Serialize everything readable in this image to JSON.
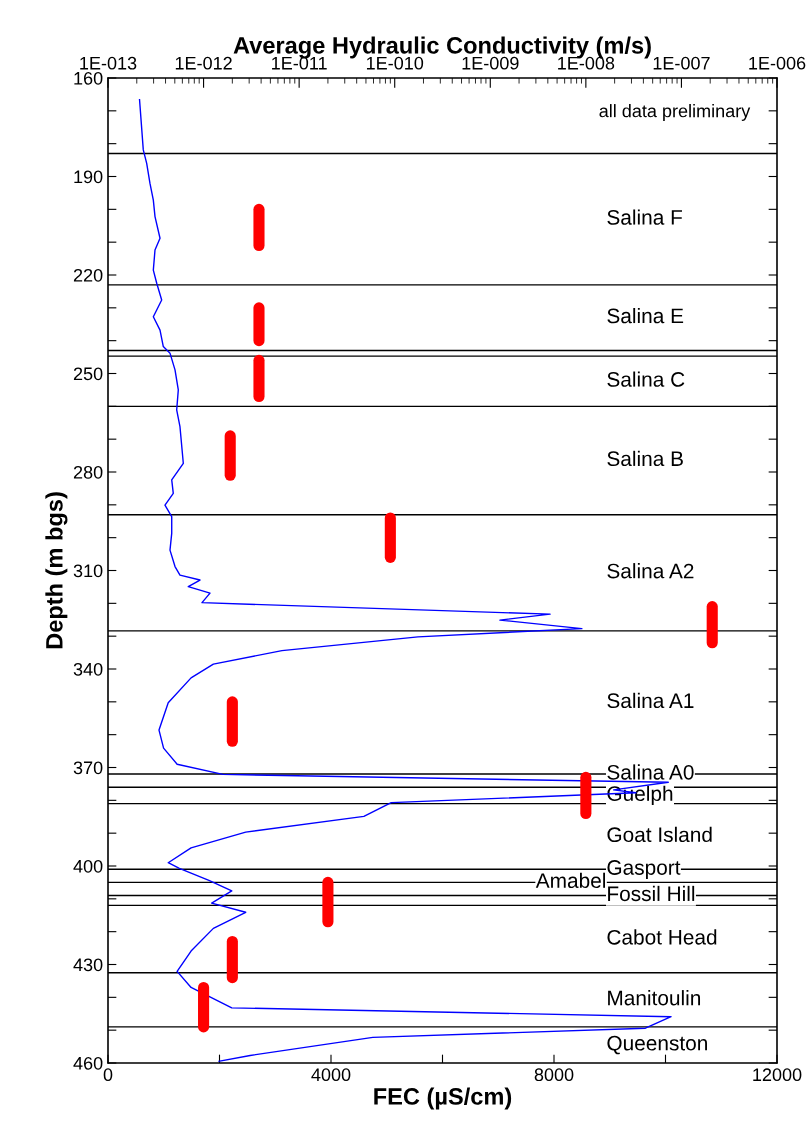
{
  "chart_data": {
    "type": "line",
    "x2label": "Average Hydraulic Conductivity (m/s)",
    "xlabel": "FEC (µS/cm)",
    "ylabel": "Depth (m bgs)",
    "xlim": [
      0,
      12000
    ],
    "xticks": [
      0,
      {
        "value": 2000,
        "label": null
      },
      4000,
      {
        "value": 6000,
        "label": null
      },
      8000,
      {
        "value": 10000,
        "label": null
      },
      12000
    ],
    "ylim": [
      460,
      160
    ],
    "yticks": [
      160,
      {
        "value": 170,
        "label": null
      },
      {
        "value": 180,
        "label": null
      },
      190,
      {
        "value": 200,
        "label": null
      },
      {
        "value": 210,
        "label": null
      },
      220,
      {
        "value": 230,
        "label": null
      },
      {
        "value": 240,
        "label": null
      },
      250,
      {
        "value": 260,
        "label": null
      },
      {
        "value": 270,
        "label": null
      },
      280,
      {
        "value": 290,
        "label": null
      },
      {
        "value": 300,
        "label": null
      },
      310,
      {
        "value": 320,
        "label": null
      },
      {
        "value": 330,
        "label": null
      },
      340,
      {
        "value": 350,
        "label": null
      },
      {
        "value": 360,
        "label": null
      },
      370,
      {
        "value": 380,
        "label": null
      },
      {
        "value": 390,
        "label": null
      },
      400,
      {
        "value": 410,
        "label": null
      },
      {
        "value": 420,
        "label": null
      },
      430,
      {
        "value": 440,
        "label": null
      },
      {
        "value": 450,
        "label": null
      },
      460
    ],
    "x2lim": [
      1e-13,
      1e-06
    ],
    "x2ticks": [
      {
        "value": 1e-13,
        "label": "1E-013"
      },
      {
        "value": 1e-12,
        "label": "1E-012"
      },
      {
        "value": 1e-11,
        "label": "1E-011"
      },
      {
        "value": 1e-10,
        "label": "1E-010"
      },
      {
        "value": 1e-09,
        "label": "1E-009"
      },
      {
        "value": 1e-08,
        "label": "1E-008"
      },
      {
        "value": 1e-07,
        "label": "1E-007"
      },
      {
        "value": 1e-06,
        "label": "1E-006"
      }
    ],
    "log": "x2",
    "series": [
      {
        "color": "#0000ff",
        "x": [
          565,
          633,
          694,
          753,
          813,
          843,
          933,
          843,
          813,
          874,
          963,
          813,
          933,
          992,
          1112,
          1202,
          1261,
          1232,
          1291,
          1351,
          1143,
          1171,
          1022,
          1143,
          1143,
          1112,
          1202,
          1291,
          1650,
          1440,
          1830,
          1686,
          7930,
          7030,
          8500,
          5560,
          3120,
          1890,
          1490,
          1080,
          915,
          997,
          1240,
          2060,
          10050,
          9070,
          9470,
          5080,
          4590,
          2470,
          1490,
          1080,
          1280,
          1810,
          2220,
          1860,
          2470,
          1890,
          1490,
          1240,
          1490,
          2220,
          10100,
          9640,
          4750,
          2550,
          1980
        ],
        "values": [
          166.4,
          181.9,
          186.0,
          192.1,
          197.2,
          202.2,
          208.8,
          212.4,
          218.5,
          222.5,
          227.6,
          232.7,
          236.8,
          241.8,
          243.8,
          248.9,
          255.0,
          261.1,
          266.2,
          277.4,
          282.4,
          286.5,
          290.1,
          293.6,
          298.7,
          303.8,
          308.8,
          311.4,
          312.9,
          314.9,
          316.9,
          319.8,
          323.3,
          325.1,
          327.7,
          330.2,
          334.4,
          338.5,
          342.7,
          350.3,
          358.6,
          364.1,
          369.0,
          372.1,
          374.5,
          376.8,
          377.7,
          380.7,
          384.9,
          389.7,
          394.5,
          399.0,
          400.7,
          404.4,
          407.6,
          411.3,
          414.1,
          419.0,
          425.9,
          432.1,
          437.0,
          443.2,
          445.9,
          449.4,
          452.2,
          457.7,
          459.5
        ]
      },
      {
        "type": "line",
        "color": "#ff0000",
        "axis": "x2",
        "x": [
          3.8e-12,
          3.8e-12
        ],
        "values": [
          200,
          211
        ]
      },
      {
        "type": "line",
        "color": "#ff0000",
        "axis": "x2",
        "x": [
          3.8e-12,
          3.8e-12
        ],
        "values": [
          230,
          240
        ]
      },
      {
        "type": "line",
        "color": "#ff0000",
        "axis": "x2",
        "x": [
          3.8e-12,
          3.8e-12
        ],
        "values": [
          246,
          257
        ]
      },
      {
        "type": "line",
        "color": "#ff0000",
        "axis": "x2",
        "x": [
          1.9e-12,
          1.9e-12
        ],
        "values": [
          269,
          281
        ]
      },
      {
        "type": "line",
        "color": "#ff0000",
        "axis": "x2",
        "x": [
          9e-11,
          9e-11
        ],
        "values": [
          294,
          306
        ]
      },
      {
        "type": "line",
        "color": "#ff0000",
        "axis": "x2",
        "x": [
          2.1e-07,
          2.1e-07
        ],
        "values": [
          321,
          332
        ]
      },
      {
        "type": "line",
        "color": "#ff0000",
        "axis": "x2",
        "x": [
          2e-12,
          2e-12
        ],
        "values": [
          350,
          362
        ]
      },
      {
        "type": "line",
        "color": "#ff0000",
        "axis": "x2",
        "x": [
          1e-08,
          1e-08
        ],
        "values": [
          373,
          384
        ]
      },
      {
        "type": "line",
        "color": "#ff0000",
        "axis": "x2",
        "x": [
          2e-11,
          2e-11
        ],
        "values": [
          405,
          417
        ]
      },
      {
        "type": "line",
        "color": "#ff0000",
        "axis": "x2",
        "x": [
          2e-12,
          2e-12
        ],
        "values": [
          423,
          434
        ]
      },
      {
        "type": "line",
        "color": "#ff0000",
        "axis": "x2",
        "x": [
          1e-12,
          1e-12
        ],
        "values": [
          437,
          449
        ]
      }
    ],
    "ref_lines": [
      {
        "axis": "y",
        "value": 183,
        "color": "#000000",
        "label": "Salina F"
      },
      {
        "axis": "y",
        "value": 223,
        "color": "#000000",
        "label": "Salina E"
      },
      {
        "axis": "y",
        "value": 243,
        "color": "#000000"
      },
      {
        "axis": "y",
        "value": 244.7,
        "color": "#000000",
        "label": "Salina C"
      },
      {
        "axis": "y",
        "value": 260,
        "color": "#000000",
        "label": "Salina B"
      },
      {
        "axis": "y",
        "value": 293,
        "color": "#000000",
        "label": "Salina A2"
      },
      {
        "axis": "y",
        "value": 328.4,
        "color": "#000000",
        "label": "Salina A1"
      },
      {
        "axis": "y",
        "value": 372,
        "color": "#000000",
        "label": "Salina A0"
      },
      {
        "axis": "y",
        "value": 376,
        "color": "#000000",
        "label": "Guelph"
      },
      {
        "axis": "y",
        "value": 381,
        "color": "#000000",
        "label": "Goat Island"
      },
      {
        "axis": "y",
        "value": 401,
        "color": "#000000",
        "label": "Gasport"
      },
      {
        "axis": "y",
        "value": 405,
        "color": "#000000",
        "label": "Amabel"
      },
      {
        "axis": "y",
        "value": 409,
        "color": "#000000",
        "label": "Fossil Hill"
      },
      {
        "axis": "y",
        "value": 412,
        "color": "#000000",
        "label": "Cabot Head"
      },
      {
        "axis": "y",
        "value": 432.5,
        "color": "#000000",
        "label": "Manitoulin"
      },
      {
        "axis": "y",
        "value": 449,
        "color": "#000000",
        "label": "Queenston"
      }
    ],
    "annotations": [
      "all data preliminary"
    ]
  }
}
